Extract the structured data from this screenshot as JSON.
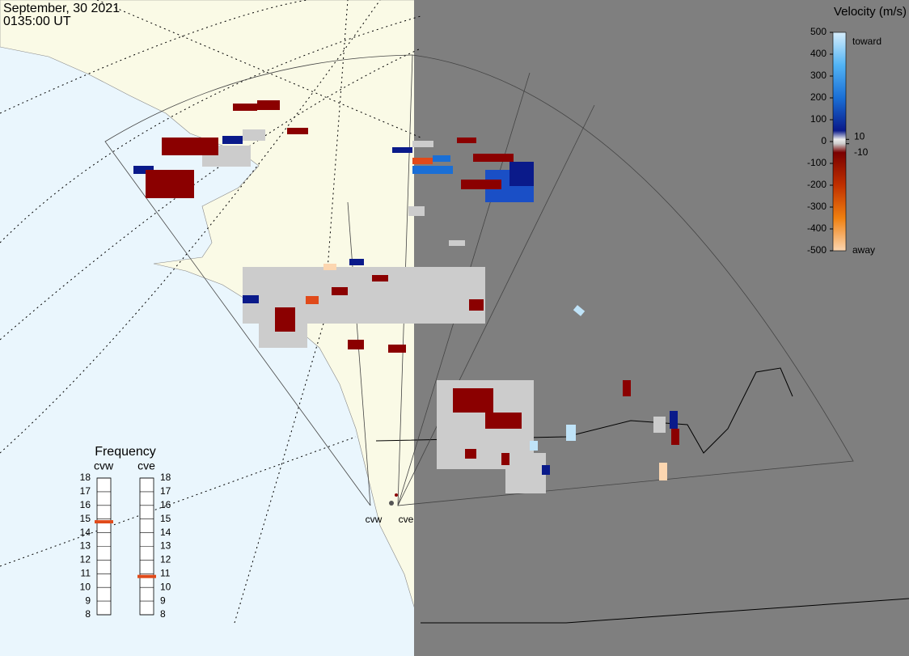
{
  "header": {
    "date": "September, 30 2021",
    "time": "0135:00 UT"
  },
  "velocity_legend": {
    "title": "Velocity (m/s)",
    "ticks": [
      500,
      400,
      300,
      200,
      100,
      0,
      -100,
      -200,
      -300,
      -400,
      -500
    ],
    "inner_ticks": [
      10,
      -10
    ],
    "toward": "toward",
    "away": "away"
  },
  "frequency": {
    "title": "Frequency",
    "ticks": [
      8,
      9,
      10,
      11,
      12,
      13,
      14,
      15,
      16,
      17,
      18
    ],
    "radars": [
      {
        "name": "cvw",
        "value": 14.8,
        "color": "#e04a1a"
      },
      {
        "name": "cve",
        "value": 10.8,
        "color": "#e04a1a"
      }
    ]
  },
  "sites": [
    "cvw",
    "cve"
  ]
}
